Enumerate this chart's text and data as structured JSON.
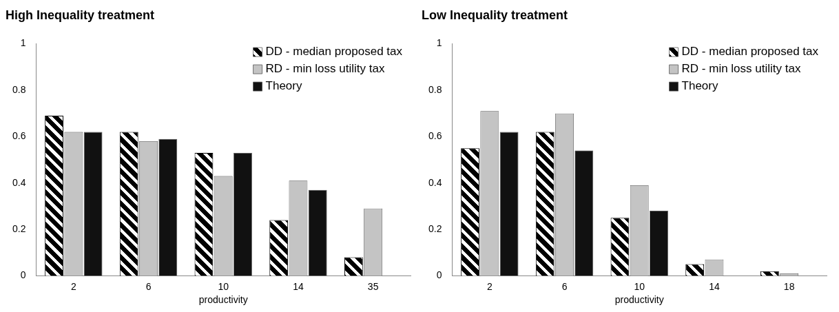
{
  "chart_data": [
    {
      "type": "bar",
      "title": "High Inequality treatment",
      "xlabel": "productivity",
      "categories": [
        "2",
        "6",
        "10",
        "14",
        "35"
      ],
      "series": [
        {
          "name": "DD - median proposed tax",
          "color": "#000000",
          "values": [
            0.69,
            0.62,
            0.53,
            0.24,
            0.08
          ]
        },
        {
          "name": "RD - min loss utility tax",
          "color": "#c4c4c4",
          "values": [
            0.62,
            0.58,
            0.43,
            0.41,
            0.29
          ]
        },
        {
          "name": "Theory",
          "color": "#111111",
          "values": [
            0.62,
            0.59,
            0.53,
            0.37,
            null
          ]
        }
      ],
      "ylim": [
        0,
        1
      ],
      "yticks": [
        0,
        0.2,
        0.4,
        0.6,
        0.8,
        1
      ],
      "grid": false,
      "legend": "top right"
    },
    {
      "type": "bar",
      "title": "Low Inequality treatment",
      "xlabel": "productivity",
      "categories": [
        "2",
        "6",
        "10",
        "14",
        "18"
      ],
      "series": [
        {
          "name": "DD - median proposed tax",
          "color": "#000000",
          "values": [
            0.55,
            0.62,
            0.25,
            0.05,
            0.02
          ]
        },
        {
          "name": "RD - min loss utility tax",
          "color": "#c4c4c4",
          "values": [
            0.71,
            0.7,
            0.39,
            0.07,
            0.01
          ]
        },
        {
          "name": "Theory",
          "color": "#111111",
          "values": [
            0.62,
            0.54,
            0.28,
            null,
            null
          ]
        }
      ],
      "ylim": [
        0,
        1
      ],
      "yticks": [
        0,
        0.2,
        0.4,
        0.6,
        0.8,
        1
      ],
      "grid": false,
      "legend": "top right"
    }
  ]
}
